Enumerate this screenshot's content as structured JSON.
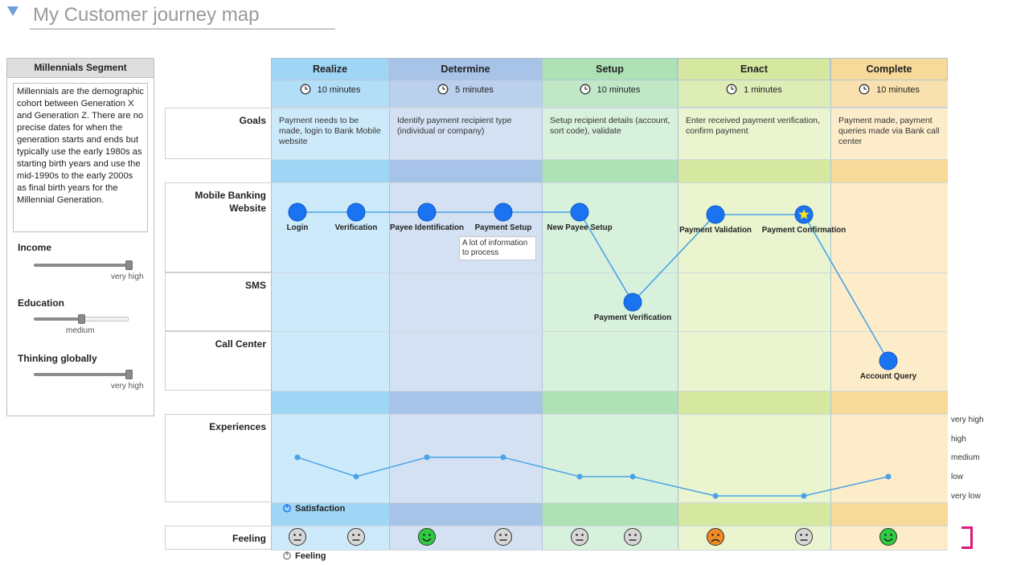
{
  "header": {
    "title": "My Customer journey map"
  },
  "segment": {
    "title": "Millennials Segment",
    "description": "Millennials are the demographic cohort between Generation X and Generation Z. There are no precise dates for when the generation starts and ends but typically use the early 1980s as starting birth years and use the mid-1990s to the early 2000s as final birth years for the Millennial Generation.",
    "attributes": [
      {
        "label": "Income",
        "value_label": "very high",
        "level": 1.0
      },
      {
        "label": "Education",
        "value_label": "medium",
        "level": 0.5
      },
      {
        "label": "Thinking globally",
        "value_label": "very high",
        "level": 1.0
      }
    ]
  },
  "rows": {
    "goals": "Goals",
    "mobile": "Mobile Banking Website",
    "sms": "SMS",
    "call_center": "Call Center",
    "experiences": "Experiences",
    "feeling": "Feeling"
  },
  "phases": [
    {
      "name": "Realize",
      "duration": "10 minutes",
      "goal": "Payment needs to be made, login to Bank Mobile website",
      "color_head": "#9fd6f5",
      "color_body": "#cdeafb"
    },
    {
      "name": "Determine",
      "duration": "5 minutes",
      "goal": "Identify payment recipient type (individual or company)",
      "color_head": "#a8c3e8",
      "color_body": "#d3e1f3"
    },
    {
      "name": "Setup",
      "duration": "10 minutes",
      "goal": "Setup recipient details (account, sort code), validate",
      "color_head": "#aee2b6",
      "color_body": "#d8f1dc"
    },
    {
      "name": "Enact",
      "duration": "1 minutes",
      "goal": "Enter received payment verification, confirm payment",
      "color_head": "#d6e8a0",
      "color_body": "#eaf4cf"
    },
    {
      "name": "Complete",
      "duration": "10 minutes",
      "goal": "Payment made, payment queries made via Bank call center",
      "color_head": "#f7d999",
      "color_body": "#fcecca"
    }
  ],
  "touchpoints": [
    {
      "label": "Login",
      "channel": "mobile",
      "star": false
    },
    {
      "label": "Verification",
      "channel": "mobile",
      "star": false
    },
    {
      "label": "Payee Identification",
      "channel": "mobile",
      "star": false
    },
    {
      "label": "Payment Setup",
      "channel": "mobile",
      "star": false
    },
    {
      "label": "New Payee Setup",
      "channel": "mobile",
      "star": false
    },
    {
      "label": "Payment Verification",
      "channel": "sms",
      "star": false
    },
    {
      "label": "Payment Validation",
      "channel": "mobile",
      "star": false
    },
    {
      "label": "Payment Confirmation",
      "channel": "mobile",
      "star": true
    },
    {
      "label": "Account Query",
      "channel": "call_center",
      "star": false
    }
  ],
  "note": "A lot of information to process",
  "experience_levels": [
    "very high",
    "high",
    "medium",
    "low",
    "very low"
  ],
  "satisfaction": {
    "legend": "Satisfaction",
    "values": [
      "medium",
      "low",
      "medium",
      "medium",
      "low",
      "low",
      "very low",
      "very low",
      "low"
    ]
  },
  "feelings": {
    "legend": "Feeling",
    "values": [
      "neutral",
      "neutral",
      "happy",
      "neutral",
      "neutral",
      "neutral",
      "sad",
      "neutral",
      "happy"
    ]
  },
  "colors": {
    "node": "#1a73f0",
    "line": "#4aa3e8",
    "happy": "#2ecc40",
    "sad": "#f08a24",
    "neutral": "#d6d6d6",
    "star": "#ffe21a"
  }
}
